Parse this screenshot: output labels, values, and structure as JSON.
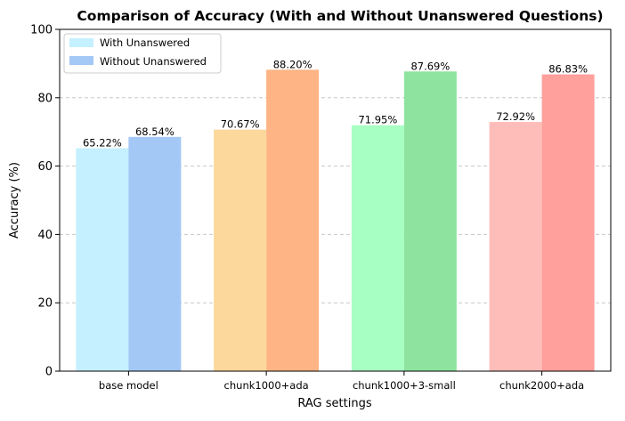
{
  "chart_data": {
    "type": "bar",
    "title": "Comparison of Accuracy (With and Without Unanswered Questions)",
    "xlabel": "RAG settings",
    "ylabel": "Accuracy (%)",
    "ylim": [
      0,
      100
    ],
    "yticks": [
      0,
      20,
      40,
      60,
      80,
      100
    ],
    "grid": "y-dashed",
    "legend_position": "top-left",
    "categories": [
      "base model",
      "chunk1000+ada",
      "chunk1000+3-small",
      "chunk2000+ada"
    ],
    "series": [
      {
        "name": "With Unanswered",
        "values": [
          65.22,
          70.67,
          71.95,
          72.92
        ],
        "labels": [
          "65.22%",
          "70.67%",
          "71.95%",
          "72.92%"
        ],
        "colors": [
          "#C4F0FF",
          "#FDD89C",
          "#A8FFC3",
          "#FFBDBA"
        ],
        "legend_color": "#C4F0FF"
      },
      {
        "name": "Without Unanswered",
        "values": [
          68.54,
          88.2,
          87.69,
          86.83
        ],
        "labels": [
          "68.54%",
          "88.20%",
          "87.69%",
          "86.83%"
        ],
        "colors": [
          "#A3C8F5",
          "#FFB485",
          "#8EE49F",
          "#FFA09C"
        ],
        "legend_color": "#A3C8F5"
      }
    ]
  }
}
